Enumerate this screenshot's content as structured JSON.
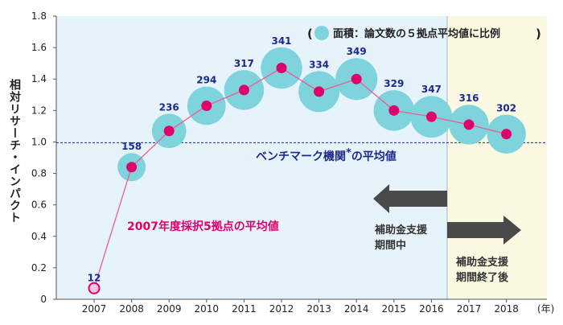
{
  "chart_data": {
    "type": "scatter",
    "ylabel": "相対リサーチ・インパクト",
    "x_unit": "(年)",
    "ylim": [
      0,
      1.8
    ],
    "yticks": [
      "0",
      "0.2",
      "0.4",
      "0.6",
      "0.8",
      "1.0",
      "1.2",
      "1.4",
      "1.6",
      "1.8"
    ],
    "x": [
      "2007",
      "2008",
      "2009",
      "2010",
      "2011",
      "2012",
      "2013",
      "2014",
      "2015",
      "2016",
      "2017",
      "2018"
    ],
    "series": [
      {
        "name": "2007年度採択5拠点の平均値",
        "values": [
          0.07,
          0.84,
          1.07,
          1.23,
          1.33,
          1.47,
          1.32,
          1.4,
          1.2,
          1.16,
          1.11,
          1.05
        ],
        "paper_counts": [
          "12",
          "158",
          "236",
          "294",
          "317",
          "341",
          "334",
          "349",
          "329",
          "347",
          "316",
          "302"
        ]
      }
    ],
    "benchmark": {
      "value": 1.0,
      "label": "ベンチマーク機関",
      "asterisk": "*",
      "label_suffix": "の平均値"
    },
    "legend": {
      "open_paren": "(",
      "text": "面積：論文数の５拠点平均値に比例",
      "close_paren": ")",
      "position": "top-right"
    },
    "periods": {
      "during_label_line1": "補助金支援",
      "during_label_line2": "期間中",
      "after_label_line1": "補助金支援",
      "after_label_line2": "期間終了後"
    },
    "colors": {
      "bubble": "#7fd3dc",
      "point": "#e0006a",
      "line": "#e85e9a",
      "series_label": "#e0006a",
      "benchmark_label": "#1b2a8c",
      "support_bg": "#e6f3fb",
      "after_bg": "#fcf9e3",
      "arrow": "#4a4a4a",
      "paper_count": "#1b2a8c"
    }
  }
}
